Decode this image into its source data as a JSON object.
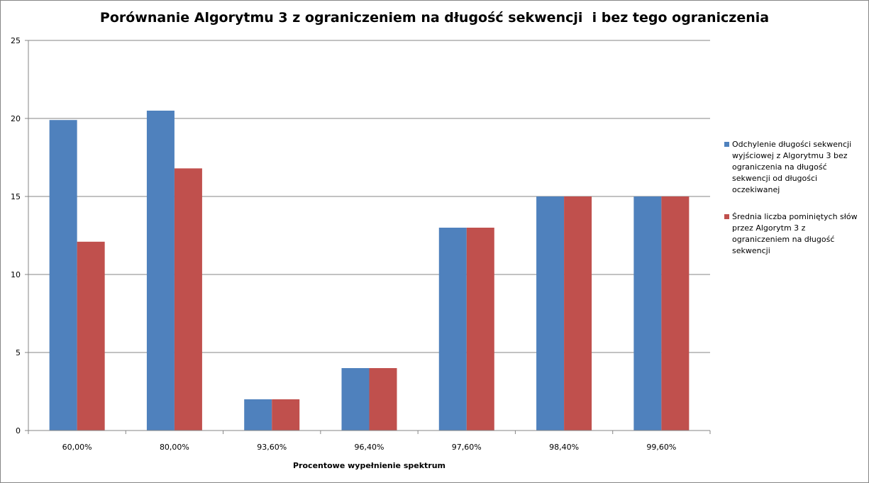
{
  "chart_data": {
    "type": "bar",
    "title": "Porównanie Algorytmu 3 z ograniczeniem na długość sekwencji  i bez tego ograniczenia",
    "xlabel": "Procentowe wypełnienie spektrum",
    "ylabel": "",
    "categories": [
      "60,00%",
      "80,00%",
      "93,60%",
      "96,40%",
      "97,60%",
      "98,40%",
      "99,60%"
    ],
    "ylim": [
      0,
      25
    ],
    "yticks": [
      0,
      5,
      10,
      15,
      20,
      25
    ],
    "grid": true,
    "legend_position": "right",
    "series": [
      {
        "name": "Odchylenie długości sekwencji wyjściowej z Algorytmu 3 bez ograniczenia  na długość sekwencji od długości oczekiwanej",
        "color": "#4f81bd",
        "values": [
          19.9,
          20.5,
          2,
          4,
          13,
          15,
          15
        ]
      },
      {
        "name": "Średnia liczba pominiętych słów przez Algorytm 3 z ograniczeniem na długość sekwencji",
        "color": "#c0504d",
        "values": [
          12.1,
          16.8,
          2,
          4,
          13,
          15,
          15
        ]
      }
    ]
  }
}
